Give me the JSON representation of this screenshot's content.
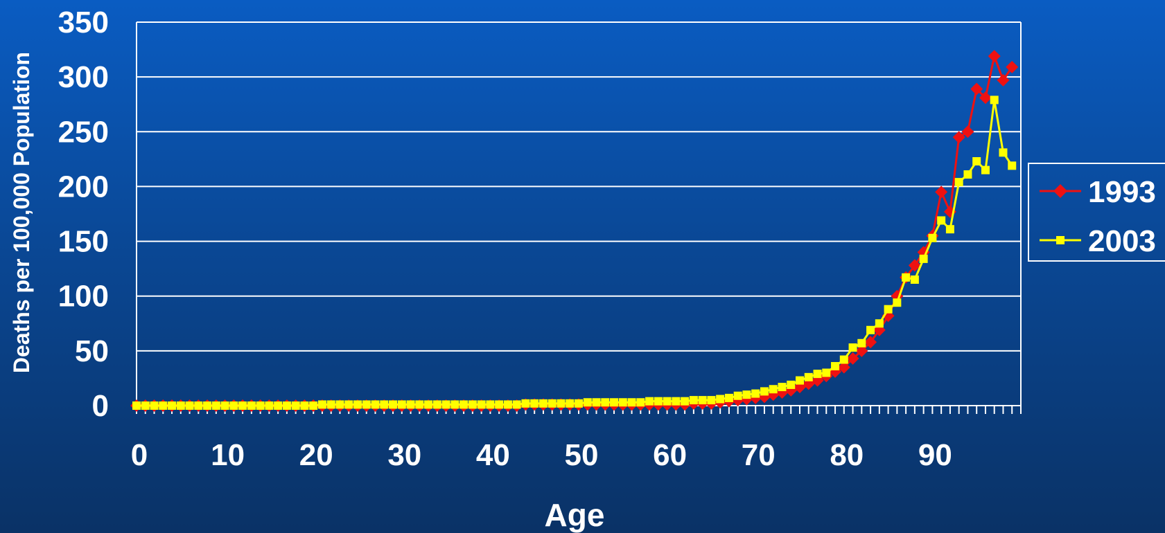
{
  "chart_data": {
    "type": "line",
    "title": "",
    "xlabel": "Age",
    "ylabel": "Deaths per 100,000 Population",
    "xlim": [
      0,
      100
    ],
    "ylim": [
      0,
      350
    ],
    "grid": true,
    "legend_position": "right",
    "x_ticks": [
      "0",
      "10",
      "20",
      "30",
      "40",
      "50",
      "60",
      "70",
      "80",
      "90"
    ],
    "x_tick_values": [
      0,
      10,
      20,
      30,
      40,
      50,
      60,
      70,
      80,
      90
    ],
    "y_ticks": [
      "0",
      "50",
      "100",
      "150",
      "200",
      "250",
      "300",
      "350"
    ],
    "y_tick_values": [
      0,
      50,
      100,
      150,
      200,
      250,
      300,
      350
    ],
    "colors": {
      "series_1993": "#ee1111",
      "series_2003": "#ffff00",
      "grid": "#ffffff",
      "text": "#ffffff"
    },
    "x": [
      0,
      1,
      2,
      3,
      4,
      5,
      6,
      7,
      8,
      9,
      10,
      11,
      12,
      13,
      14,
      15,
      16,
      17,
      18,
      19,
      20,
      21,
      22,
      23,
      24,
      25,
      26,
      27,
      28,
      29,
      30,
      31,
      32,
      33,
      34,
      35,
      36,
      37,
      38,
      39,
      40,
      41,
      42,
      43,
      44,
      45,
      46,
      47,
      48,
      49,
      50,
      51,
      52,
      53,
      54,
      55,
      56,
      57,
      58,
      59,
      60,
      61,
      62,
      63,
      64,
      65,
      66,
      67,
      68,
      69,
      70,
      71,
      72,
      73,
      74,
      75,
      76,
      77,
      78,
      79,
      80,
      81,
      82,
      83,
      84,
      85,
      86,
      87,
      88,
      89,
      90,
      91,
      92,
      93,
      94,
      95,
      96,
      97,
      98,
      99
    ],
    "series": [
      {
        "name": "1993",
        "marker": "diamond",
        "values": [
          0,
          0,
          0,
          0,
          0,
          0,
          0,
          0,
          0,
          0,
          0,
          0,
          0,
          0,
          0,
          0,
          0,
          0,
          0,
          0,
          0,
          0,
          0,
          0,
          0,
          0,
          0,
          0,
          0,
          0,
          0,
          0,
          0,
          0,
          0,
          0,
          0,
          0,
          0,
          0,
          0,
          0,
          0,
          0,
          1,
          1,
          1,
          1,
          1,
          1,
          1,
          1,
          1,
          1,
          1,
          1,
          1,
          1,
          1,
          1,
          1,
          1,
          1,
          2,
          2,
          2,
          3,
          4,
          5,
          6,
          7,
          8,
          10,
          12,
          14,
          17,
          20,
          23,
          27,
          31,
          35,
          43,
          50,
          58,
          69,
          82,
          100,
          117,
          128,
          140,
          155,
          195,
          177,
          245,
          250,
          289,
          281,
          319,
          297,
          309
        ]
      },
      {
        "name": "2003",
        "marker": "square",
        "values": [
          0,
          0,
          0,
          0,
          0,
          0,
          0,
          0,
          0,
          0,
          0,
          0,
          0,
          0,
          0,
          0,
          0,
          0,
          0,
          0,
          0,
          1,
          1,
          1,
          1,
          1,
          1,
          1,
          1,
          1,
          1,
          1,
          1,
          1,
          1,
          1,
          1,
          1,
          1,
          1,
          1,
          1,
          1,
          1,
          2,
          2,
          2,
          2,
          2,
          2,
          2,
          3,
          3,
          3,
          3,
          3,
          3,
          3,
          4,
          4,
          4,
          4,
          4,
          5,
          5,
          5,
          6,
          7,
          9,
          10,
          11,
          13,
          15,
          17,
          19,
          23,
          26,
          29,
          30,
          36,
          42,
          53,
          57,
          69,
          75,
          88,
          94,
          117,
          115,
          134,
          153,
          169,
          161,
          204,
          211,
          223,
          215,
          279,
          231,
          219
        ]
      }
    ]
  }
}
